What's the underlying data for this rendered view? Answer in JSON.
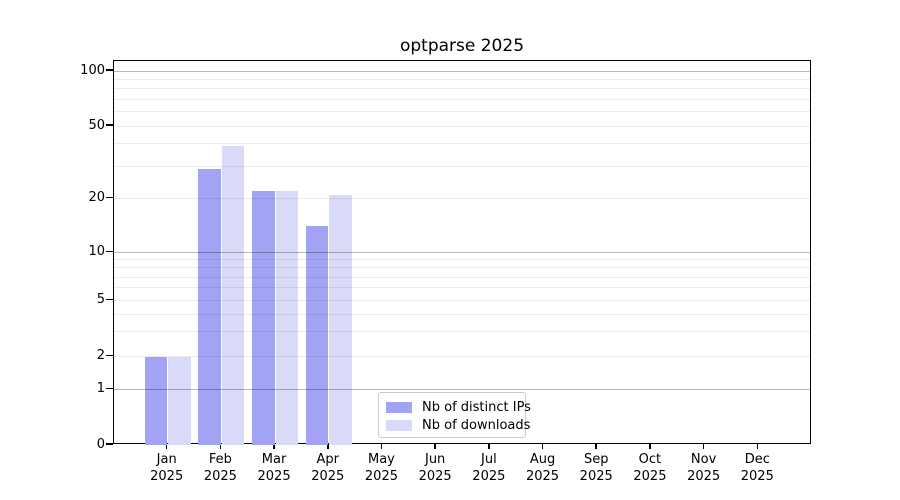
{
  "chart_data": {
    "type": "bar",
    "title": "optparse 2025",
    "categories": [
      "Jan",
      "Feb",
      "Mar",
      "Apr",
      "May",
      "Jun",
      "Jul",
      "Aug",
      "Sep",
      "Oct",
      "Nov",
      "Dec"
    ],
    "year": "2025",
    "series": [
      {
        "name": "Nb of distinct IPs",
        "color": "#a3a3f3",
        "values": [
          2,
          29,
          22,
          14,
          0,
          0,
          0,
          0,
          0,
          0,
          0,
          0
        ]
      },
      {
        "name": "Nb of downloads",
        "color": "#d9daf8",
        "values": [
          2,
          39,
          22,
          21,
          0,
          0,
          0,
          0,
          0,
          0,
          0,
          0
        ]
      }
    ],
    "yscale": "symlog",
    "ylim": [
      0,
      113
    ],
    "ytick_labels": [
      "100",
      "50",
      "20",
      "10",
      "5",
      "2",
      "1",
      "0"
    ],
    "ytick_values": [
      100,
      50,
      20,
      10,
      5,
      2,
      1,
      0
    ],
    "minor_grid_values": [
      2,
      3,
      4,
      5,
      6,
      7,
      8,
      9,
      20,
      30,
      40,
      50,
      60,
      70,
      80,
      90
    ],
    "major_grid_values": [
      1,
      10,
      100
    ],
    "grid": "both",
    "legend": {
      "position": "inside-bottom-center",
      "entries": [
        "Nb of distinct IPs",
        "Nb of downloads"
      ]
    }
  }
}
